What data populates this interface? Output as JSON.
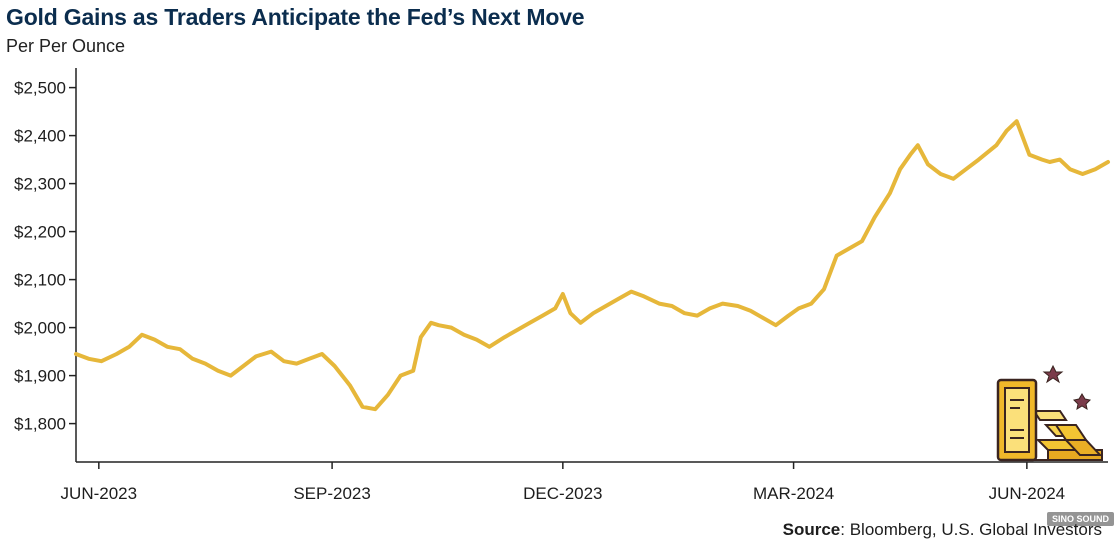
{
  "chart_data": {
    "type": "line",
    "title": "Gold Gains as Traders Anticipate the Fed’s Next Move",
    "subtitle": "Per Per Ounce",
    "ylim": [
      1720,
      2520
    ],
    "yticks": [
      1800,
      1900,
      2000,
      2100,
      2200,
      2300,
      2400,
      2500
    ],
    "ytick_labels": [
      "$1,800",
      "$1,900",
      "$2,000",
      "$2,100",
      "$2,200",
      "$2,300",
      "$2,400",
      "$2,500"
    ],
    "xlim": [
      "2023-05-23",
      "2024-07-03"
    ],
    "xticks": [
      "2023-06-01",
      "2023-09-01",
      "2023-12-01",
      "2024-03-01",
      "2024-06-01"
    ],
    "xtick_labels": [
      "JUN-2023",
      "SEP-2023",
      "DEC-2023",
      "MAR-2024",
      "JUN-2024"
    ],
    "grid": false,
    "line_color": "#e6b73a",
    "series": [
      {
        "x": [
          "2023-05-23",
          "2023-05-28",
          "2023-06-02",
          "2023-06-08",
          "2023-06-13",
          "2023-06-18",
          "2023-06-23",
          "2023-06-28",
          "2023-07-03",
          "2023-07-08",
          "2023-07-13",
          "2023-07-18",
          "2023-07-23",
          "2023-07-28",
          "2023-08-02",
          "2023-08-08",
          "2023-08-13",
          "2023-08-18",
          "2023-08-23",
          "2023-08-28",
          "2023-09-02",
          "2023-09-08",
          "2023-09-13",
          "2023-09-18",
          "2023-09-23",
          "2023-09-28",
          "2023-10-03",
          "2023-10-06",
          "2023-10-10",
          "2023-10-13",
          "2023-10-18",
          "2023-10-23",
          "2023-10-28",
          "2023-11-02",
          "2023-11-08",
          "2023-11-13",
          "2023-11-18",
          "2023-11-23",
          "2023-11-28",
          "2023-12-01",
          "2023-12-04",
          "2023-12-08",
          "2023-12-13",
          "2023-12-18",
          "2023-12-23",
          "2023-12-28",
          "2024-01-02",
          "2024-01-08",
          "2024-01-13",
          "2024-01-18",
          "2024-01-23",
          "2024-01-28",
          "2024-02-02",
          "2024-02-08",
          "2024-02-13",
          "2024-02-18",
          "2024-02-23",
          "2024-02-28",
          "2024-03-03",
          "2024-03-08",
          "2024-03-13",
          "2024-03-18",
          "2024-03-23",
          "2024-03-28",
          "2024-04-02",
          "2024-04-08",
          "2024-04-12",
          "2024-04-16",
          "2024-04-19",
          "2024-04-23",
          "2024-04-28",
          "2024-05-03",
          "2024-05-08",
          "2024-05-13",
          "2024-05-20",
          "2024-05-24",
          "2024-05-28",
          "2024-06-02",
          "2024-06-07",
          "2024-06-10",
          "2024-06-14",
          "2024-06-18",
          "2024-06-23",
          "2024-06-28",
          "2024-07-03"
        ],
        "y": [
          1945,
          1935,
          1930,
          1945,
          1960,
          1985,
          1975,
          1960,
          1955,
          1935,
          1925,
          1910,
          1900,
          1920,
          1940,
          1950,
          1930,
          1925,
          1935,
          1945,
          1920,
          1880,
          1835,
          1830,
          1860,
          1900,
          1910,
          1980,
          2010,
          2005,
          2000,
          1985,
          1975,
          1960,
          1980,
          1995,
          2010,
          2025,
          2040,
          2070,
          2030,
          2010,
          2030,
          2045,
          2060,
          2075,
          2065,
          2050,
          2045,
          2030,
          2025,
          2040,
          2050,
          2045,
          2035,
          2020,
          2005,
          2025,
          2040,
          2050,
          2080,
          2150,
          2165,
          2180,
          2230,
          2280,
          2330,
          2360,
          2380,
          2340,
          2320,
          2310,
          2330,
          2350,
          2380,
          2410,
          2430,
          2360,
          2350,
          2345,
          2350,
          2330,
          2320,
          2330,
          2345
        ]
      }
    ]
  },
  "source": {
    "label": "Source",
    "text": ": Bloomberg, U.S. Global Investors"
  },
  "watermark": "SINO SOUND"
}
